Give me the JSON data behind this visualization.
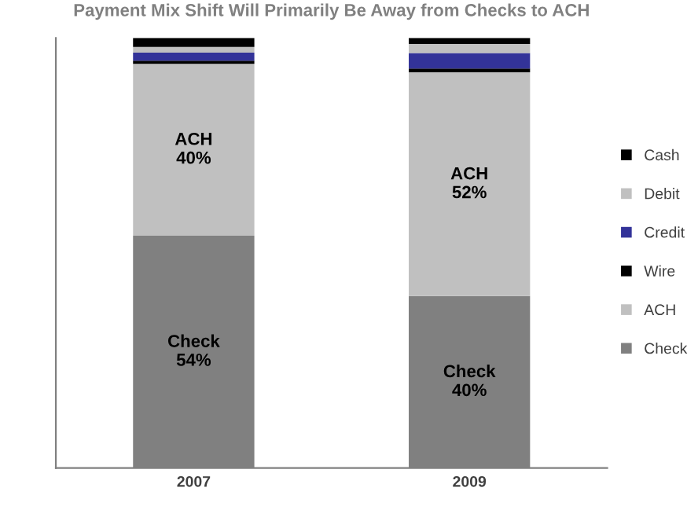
{
  "chart_data": {
    "type": "bar",
    "title": "Payment Mix Shift Will Primarily Be Away from Checks to ACH",
    "categories": [
      "2007",
      "2009"
    ],
    "stacked": true,
    "ylim": [
      0,
      100
    ],
    "tick_labels": "x",
    "grid": false,
    "legend": "right",
    "series": [
      {
        "name": "Check",
        "color": "#808080",
        "values": [
          54,
          40
        ],
        "value_labels": [
          "Check\n54%",
          "Check\n40%"
        ]
      },
      {
        "name": "ACH",
        "color": "#c0c0c0",
        "values": [
          40,
          52
        ],
        "value_labels": [
          "ACH\n40%",
          "ACH\n52%"
        ]
      },
      {
        "name": "Wire",
        "color": "#000000",
        "values": [
          0.7,
          0.9
        ]
      },
      {
        "name": "Credit",
        "color": "#333399",
        "values": [
          1.9,
          3.6
        ]
      },
      {
        "name": "Debit",
        "color": "#c0c0c0",
        "values": [
          1.3,
          2.1
        ]
      },
      {
        "name": "Cash",
        "color": "#000000",
        "values": [
          2.1,
          1.4
        ]
      }
    ]
  }
}
